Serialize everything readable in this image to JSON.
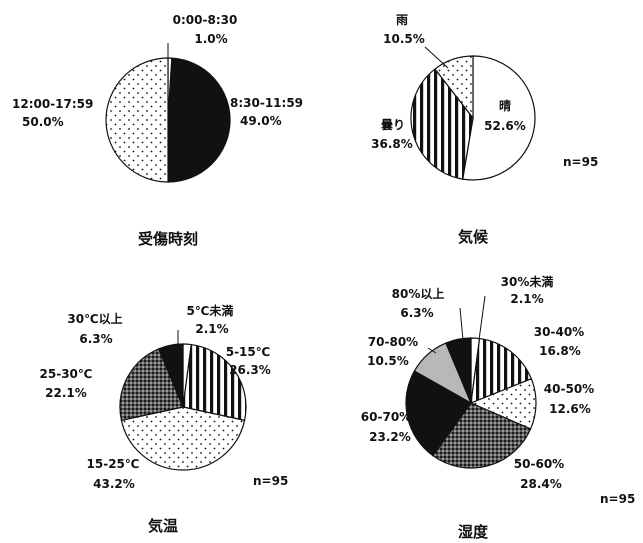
{
  "chart_data": [
    {
      "type": "pie",
      "title": "受傷時刻",
      "slices": [
        {
          "label": "0:00-8:30",
          "value": 1.0,
          "pct": "1.0%",
          "fill": "white"
        },
        {
          "label": "8:30-11:59",
          "value": 49.0,
          "pct": "49.0%",
          "fill": "black"
        },
        {
          "label": "12:00-17:59",
          "value": 50.0,
          "pct": "50.0%",
          "fill": "dots"
        }
      ]
    },
    {
      "type": "pie",
      "title": "気候",
      "n": "n=95",
      "slices": [
        {
          "label": "晴",
          "value": 52.6,
          "pct": "52.6%",
          "fill": "white"
        },
        {
          "label": "曇り",
          "value": 36.8,
          "pct": "36.8%",
          "fill": "vstripes"
        },
        {
          "label": "雨",
          "value": 10.5,
          "pct": "10.5%",
          "fill": "dots"
        }
      ]
    },
    {
      "type": "pie",
      "title": "気温",
      "n": "n=95",
      "slices": [
        {
          "label": "5℃未満",
          "value": 2.1,
          "pct": "2.1%",
          "fill": "white"
        },
        {
          "label": "5-15℃",
          "value": 26.3,
          "pct": "26.3%",
          "fill": "vstripes"
        },
        {
          "label": "15-25℃",
          "value": 43.2,
          "pct": "43.2%",
          "fill": "dots"
        },
        {
          "label": "25-30℃",
          "value": 22.1,
          "pct": "22.1%",
          "fill": "crosshatch"
        },
        {
          "label": "30℃以上",
          "value": 6.3,
          "pct": "6.3%",
          "fill": "black"
        }
      ]
    },
    {
      "type": "pie",
      "title": "湿度",
      "n": "n=95",
      "slices": [
        {
          "label": "30%未満",
          "value": 2.1,
          "pct": "2.1%",
          "fill": "white"
        },
        {
          "label": "30-40%",
          "value": 16.8,
          "pct": "16.8%",
          "fill": "vstripes"
        },
        {
          "label": "40-50%",
          "value": 12.6,
          "pct": "12.6%",
          "fill": "dots"
        },
        {
          "label": "50-60%",
          "value": 28.4,
          "pct": "28.4%",
          "fill": "crosshatch"
        },
        {
          "label": "60-70%",
          "value": 23.2,
          "pct": "23.2%",
          "fill": "black"
        },
        {
          "label": "70-80%",
          "value": 10.5,
          "pct": "10.5%",
          "fill": "gray"
        },
        {
          "label": "80%以上",
          "value": 6.3,
          "pct": "6.3%",
          "fill": "black"
        }
      ]
    }
  ]
}
